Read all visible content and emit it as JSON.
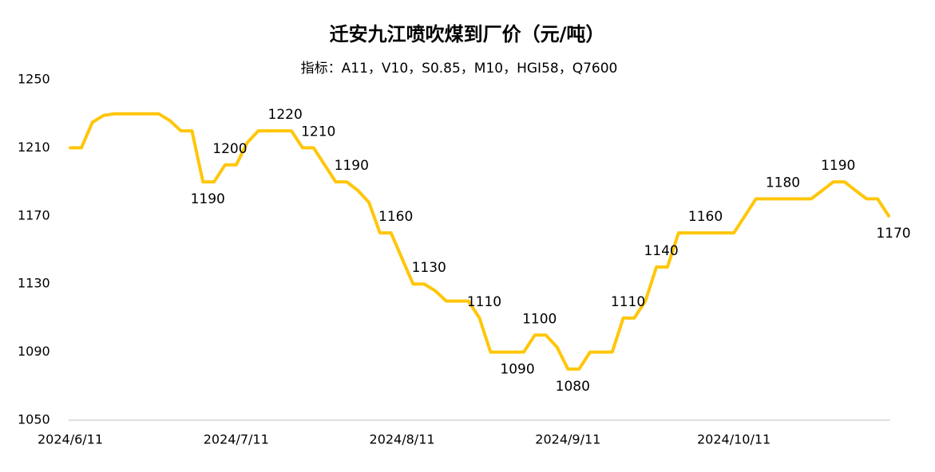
{
  "chart_data": {
    "type": "line",
    "title": "迁安九江喷吹煤到厂价（元/吨）",
    "subtitle": "指标：A11，V10，S0.85，M10，HGI58，Q7600",
    "categories": [
      "2024/6/11",
      null,
      null,
      null,
      null,
      null,
      null,
      null,
      null,
      null,
      null,
      null,
      null,
      null,
      null,
      "2024/7/11",
      null,
      null,
      null,
      null,
      null,
      null,
      null,
      null,
      null,
      null,
      null,
      null,
      null,
      null,
      "2024/8/11",
      null,
      null,
      null,
      null,
      null,
      null,
      null,
      null,
      null,
      null,
      null,
      null,
      null,
      null,
      "2024/9/11",
      null,
      null,
      null,
      null,
      null,
      null,
      null,
      null,
      null,
      null,
      null,
      null,
      null,
      null,
      "2024/10/11",
      null,
      null,
      null,
      null,
      null,
      null,
      null,
      null,
      null,
      null,
      null,
      null,
      null,
      null
    ],
    "series": [
      {
        "color": "#FFC60A",
        "values": [
          1210,
          1210,
          1225,
          1229,
          1230,
          1230,
          1230,
          1230,
          1230,
          1226,
          1220,
          1220,
          1190,
          1190,
          1200,
          1200,
          1213,
          1220,
          1220,
          1220,
          1220,
          1210,
          1210,
          1200,
          1190,
          1190,
          1185,
          1178,
          1160,
          1160,
          1145,
          1130,
          1130,
          1126,
          1120,
          1120,
          1120,
          1110,
          1090,
          1090,
          1090,
          1090,
          1100,
          1100,
          1093,
          1080,
          1080,
          1090,
          1090,
          1090,
          1110,
          1110,
          1120,
          1140,
          1140,
          1160,
          1160,
          1160,
          1160,
          1160,
          1160,
          1170,
          1180,
          1180,
          1180,
          1180,
          1180,
          1180,
          1185,
          1190,
          1190,
          1185,
          1180,
          1180,
          1170
        ],
        "value_labels": [
          null,
          null,
          null,
          null,
          null,
          null,
          null,
          null,
          null,
          null,
          null,
          null,
          "1190",
          null,
          "1200",
          null,
          null,
          null,
          null,
          "1220",
          null,
          null,
          "1210",
          null,
          null,
          "1190",
          null,
          null,
          null,
          "1160",
          null,
          null,
          "1130",
          null,
          null,
          null,
          null,
          "1110",
          null,
          null,
          "1090",
          null,
          "1100",
          null,
          null,
          "1080",
          null,
          null,
          null,
          null,
          "1110",
          null,
          null,
          "1140",
          null,
          null,
          null,
          "1160",
          null,
          null,
          null,
          null,
          null,
          null,
          "1180",
          null,
          null,
          null,
          null,
          "1190",
          null,
          null,
          null,
          null,
          "1170"
        ]
      }
    ],
    "ylim": [
      1050,
      1250
    ],
    "yticks": [
      1050,
      1090,
      1130,
      1170,
      1210,
      1250
    ],
    "grid": false
  }
}
